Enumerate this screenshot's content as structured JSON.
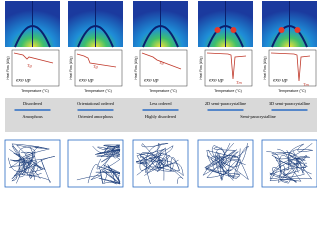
{
  "panels": [
    {
      "heat_flow_label": "Heat Flow (W/g)",
      "temperature_label": "Temperature (°C)",
      "exo_label": "exo up",
      "transition_label": "Tg",
      "order_label": "Disordered",
      "structure_label": "Amorphous"
    },
    {
      "heat_flow_label": "Heat Flow (W/g)",
      "temperature_label": "Temperature (°C)",
      "exo_label": "exo up",
      "transition_label": "Tg",
      "order_label": "Orientational ordered",
      "structure_label": "Oriented amorphous"
    },
    {
      "heat_flow_label": "Heat Flow (W/g)",
      "temperature_label": "Temperature (°C)",
      "exo_label": "exo up",
      "transition_label": "Tg",
      "order_label": "Less ordered",
      "structure_label": "Highly disordered"
    },
    {
      "heat_flow_label": "Heat Flow (W/g)",
      "temperature_label": "Temperature (°C)",
      "exo_label": "exo up",
      "transition_label": "Tm",
      "order_label": "2D semi-paracrystalline"
    },
    {
      "heat_flow_label": "Heat Flow (W/g)",
      "temperature_label": "Temperature (°C)",
      "exo_label": "exo up",
      "transition_label": "Tm",
      "order_label": "3D semi-paracrystalline"
    }
  ],
  "shared_structure_label": "Semi-paracrystalline"
}
